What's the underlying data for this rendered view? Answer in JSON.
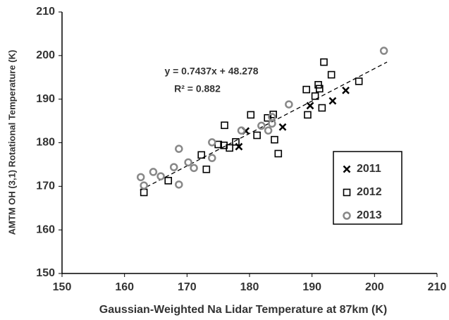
{
  "chart_data": {
    "type": "scatter",
    "x_label": "Gaussian-Weighted Na Lidar Temperature  at 87km (K)",
    "y_label": "AMTM OH (3,1) Rotational Temperature (K)",
    "xlim": [
      150,
      210
    ],
    "xticks": [
      150,
      160,
      170,
      180,
      190,
      200,
      210
    ],
    "ylim": [
      150,
      210
    ],
    "yticks": [
      150,
      160,
      170,
      180,
      190,
      200,
      210
    ],
    "grid": false,
    "legend_position": "right",
    "annotations": [
      "y = 0.7437x + 48.278",
      "R² = 0.882"
    ],
    "trendline": {
      "color": "#000000",
      "x": [
        162.5,
        202
      ],
      "y": [
        169.1,
        198.5
      ]
    },
    "series": [
      {
        "name": "2011",
        "color": "#000000",
        "marker": "x",
        "x": [
          179.4,
          178.3,
          185.3,
          189.7,
          193.3,
          195.4
        ],
        "values": [
          182.7,
          179.1,
          183.6,
          188.5,
          189.6,
          192.0
        ]
      },
      {
        "name": "2012",
        "color": "#000000",
        "marker": "square",
        "x": [
          163.1,
          167.0,
          172.3,
          173.1,
          175.0,
          175.9,
          176.0,
          176.8,
          177.8,
          180.2,
          181.2,
          182.9,
          183.8,
          184.0,
          184.6,
          189.1,
          189.3,
          190.5,
          191.0,
          191.2,
          191.6,
          191.9,
          193.1,
          197.5
        ],
        "values": [
          168.6,
          171.3,
          177.2,
          173.9,
          179.6,
          179.4,
          184.0,
          178.8,
          180.2,
          186.4,
          181.7,
          185.7,
          186.5,
          180.7,
          177.5,
          192.2,
          186.4,
          190.7,
          193.3,
          192.4,
          188.0,
          198.5,
          195.6,
          194.1
        ]
      },
      {
        "name": "2013",
        "color": "#888888",
        "marker": "circle",
        "x": [
          162.6,
          163.1,
          164.6,
          165.8,
          167.9,
          168.7,
          168.7,
          170.2,
          171.1,
          174.0,
          174.0,
          178.7,
          181.9,
          183.0,
          183.6,
          183.6,
          186.3,
          201.5
        ],
        "values": [
          172.1,
          170.2,
          173.3,
          172.3,
          174.4,
          178.6,
          170.4,
          175.5,
          174.2,
          180.1,
          176.5,
          182.8,
          183.9,
          182.8,
          185.9,
          184.4,
          188.8,
          201.1
        ]
      }
    ]
  }
}
